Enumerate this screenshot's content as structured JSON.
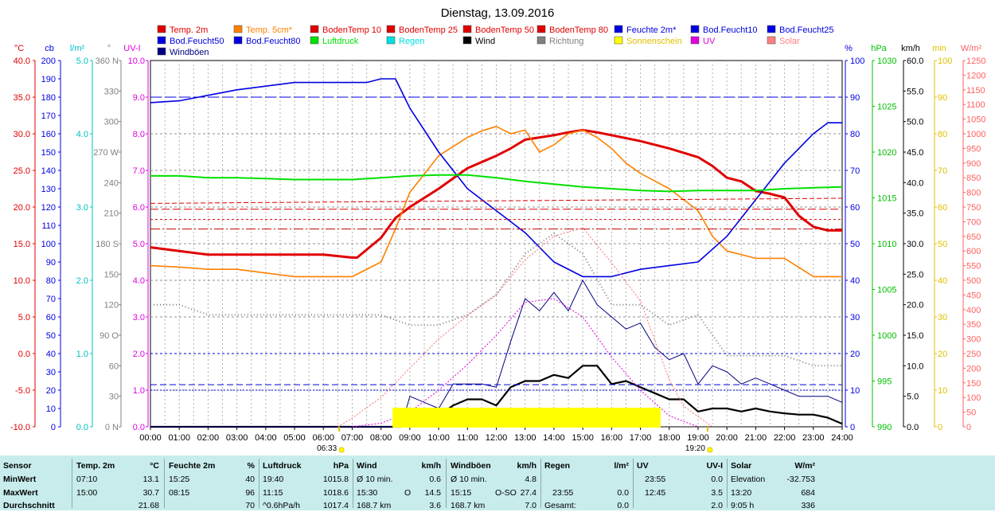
{
  "chart_data": {
    "type": "line",
    "title": "Dienstag, 13.09.2016",
    "x_ticks": [
      "00:00",
      "01:00",
      "02:00",
      "03:00",
      "04:00",
      "05:00",
      "06:00",
      "07:00",
      "08:00",
      "09:00",
      "10:00",
      "11:00",
      "12:00",
      "13:00",
      "14:00",
      "15:00",
      "16:00",
      "17:00",
      "18:00",
      "19:00",
      "20:00",
      "21:00",
      "22:00",
      "23:00",
      "24:00"
    ],
    "sun_events": [
      {
        "label": "06:33",
        "hour": 6.55
      },
      {
        "label": "19:20",
        "hour": 19.33
      }
    ],
    "legend": [
      {
        "name": "Temp. 2m",
        "color": "#e00000"
      },
      {
        "name": "Temp. 5cm*",
        "color": "#ff8000"
      },
      {
        "name": "BodenTemp 10",
        "color": "#e00000"
      },
      {
        "name": "BodenTemp 25",
        "color": "#e00000"
      },
      {
        "name": "BodenTemp 50",
        "color": "#e00000"
      },
      {
        "name": "BodenTemp 80",
        "color": "#e00000"
      },
      {
        "name": "Feuchte 2m*",
        "color": "#0000e0"
      },
      {
        "name": "Bod.Feucht10",
        "color": "#0000e0"
      },
      {
        "name": "Bod.Feucht25",
        "color": "#0000e0"
      },
      {
        "name": "Bod.Feucht50",
        "color": "#0000e0"
      },
      {
        "name": "Bod.Feucht80",
        "color": "#0000e0"
      },
      {
        "name": "Luftdruck",
        "color": "#00e000"
      },
      {
        "name": "Regen",
        "color": "#00e0e0"
      },
      {
        "name": "Wind",
        "color": "#000000"
      },
      {
        "name": "Richtung",
        "color": "#808080"
      },
      {
        "name": "Sonnenschein",
        "color": "#ffff00"
      },
      {
        "name": "UV",
        "color": "#e000e0"
      },
      {
        "name": "Solar",
        "color": "#ff8080"
      },
      {
        "name": "Windböen",
        "color": "#000080"
      }
    ],
    "axes": [
      {
        "unit": "°C",
        "color": "#e00000",
        "ticks": [
          "40.0",
          "35.0",
          "30.0",
          "25.0",
          "20.0",
          "15.0",
          "10.0",
          "5.0",
          "0.0",
          "-5.0",
          "-10.0"
        ]
      },
      {
        "unit": "cb",
        "color": "#0000e0",
        "ticks": [
          "200",
          "190",
          "180",
          "170",
          "160",
          "150",
          "140",
          "130",
          "120",
          "110",
          "100",
          "90",
          "80",
          "70",
          "60",
          "50",
          "40",
          "30",
          "20",
          "10",
          "0"
        ]
      },
      {
        "unit": "l/m²",
        "color": "#00c0c0",
        "ticks": [
          "5.0",
          "4.0",
          "3.0",
          "2.0",
          "1.0",
          "0.0"
        ]
      },
      {
        "unit": "°",
        "color": "#808080",
        "ticks": [
          "360 N",
          "330",
          "300",
          "270 W",
          "240",
          "210",
          "180 S",
          "150",
          "120",
          "90 O",
          "60",
          "30",
          "0 N"
        ]
      },
      {
        "unit": "UV-I",
        "color": "#e000e0",
        "ticks": [
          "10.0",
          "9.0",
          "8.0",
          "7.0",
          "6.0",
          "5.0",
          "4.0",
          "3.0",
          "2.0",
          "1.0",
          "0.0"
        ]
      },
      {
        "unit": "%",
        "color": "#0000e0",
        "ticks": [
          "100",
          "90",
          "80",
          "70",
          "60",
          "50",
          "40",
          "30",
          "20",
          "10",
          "0"
        ]
      },
      {
        "unit": "hPa",
        "color": "#00c000",
        "ticks": [
          "1030",
          "1025",
          "1020",
          "1015",
          "1010",
          "1005",
          "1000",
          "995",
          "990"
        ]
      },
      {
        "unit": "km/h",
        "color": "#000000",
        "ticks": [
          "60.0",
          "55.0",
          "50.0",
          "45.0",
          "40.0",
          "35.0",
          "30.0",
          "25.0",
          "20.0",
          "15.0",
          "10.0",
          "5.0",
          "0.0"
        ]
      },
      {
        "unit": "min",
        "color": "#e0c000",
        "ticks": [
          "100",
          "90",
          "80",
          "70",
          "60",
          "50",
          "40",
          "30",
          "20",
          "10",
          "0"
        ]
      },
      {
        "unit": "W/m²",
        "color": "#ff6060",
        "ticks": [
          "1250",
          "1200",
          "1150",
          "1100",
          "1050",
          "1000",
          "950",
          "900",
          "850",
          "800",
          "750",
          "700",
          "650",
          "600",
          "550",
          "500",
          "450",
          "400",
          "350",
          "300",
          "250",
          "200",
          "150",
          "100",
          "50",
          "0"
        ]
      }
    ],
    "series": [
      {
        "name": "Temp. 2m",
        "unit": "°C",
        "x": [
          0,
          1,
          2,
          3,
          4,
          5,
          6,
          7,
          7.17,
          8,
          8.5,
          9,
          10,
          11,
          12,
          12.5,
          13,
          13.5,
          14,
          14.5,
          15,
          15.5,
          16,
          17,
          18,
          19,
          19.5,
          20,
          20.5,
          21,
          21.5,
          22,
          22.5,
          23,
          23.5,
          24
        ],
        "y": [
          14.5,
          14,
          13.5,
          13.5,
          13.5,
          13.5,
          13.5,
          13.1,
          13.1,
          15.8,
          18.5,
          20,
          22.5,
          25.3,
          27,
          28,
          29.2,
          29.5,
          29.8,
          30.2,
          30.5,
          30.2,
          29.8,
          29,
          28,
          26.8,
          25.6,
          24,
          23.5,
          22.2,
          21.8,
          21.3,
          18.8,
          17.3,
          16.8,
          16.8
        ]
      },
      {
        "name": "Temp. 5cm*",
        "unit": "°C",
        "x": [
          0,
          1,
          2,
          3,
          4,
          5,
          6,
          7,
          8,
          8.5,
          9,
          10,
          11,
          11.5,
          12,
          12.5,
          13,
          13.5,
          14,
          14.5,
          15,
          15.5,
          16,
          16.5,
          17,
          18,
          19,
          19.5,
          20,
          21,
          22,
          23,
          24
        ],
        "y": [
          12,
          11.8,
          11.5,
          11.5,
          11,
          10.5,
          10.5,
          10.5,
          12.5,
          17,
          22,
          27,
          29.5,
          30.4,
          31,
          30,
          30.5,
          27.5,
          28.5,
          30,
          30.5,
          29.5,
          28,
          26,
          24.6,
          22.5,
          19.5,
          16,
          14,
          13,
          13,
          10.5,
          10.5
        ]
      },
      {
        "name": "Feuchte 2m*",
        "unit": "%",
        "x": [
          0,
          1,
          2,
          3,
          4,
          5,
          6,
          7,
          7.5,
          8,
          8.5,
          9,
          10,
          11,
          12,
          13,
          14,
          15,
          16,
          17,
          18,
          19,
          20,
          21,
          22,
          23,
          23.5,
          24
        ],
        "y": [
          88.5,
          89,
          90.5,
          92,
          93,
          94,
          94,
          94,
          94,
          95,
          95,
          87,
          75,
          65,
          59,
          53,
          45,
          41,
          41,
          43,
          44,
          45,
          52,
          62,
          72,
          80,
          83,
          83
        ]
      },
      {
        "name": "Luftdruck",
        "unit": "hPa",
        "x": [
          0,
          1,
          2,
          3,
          4,
          5,
          6,
          7,
          8,
          9,
          10,
          11,
          12,
          13,
          14,
          15,
          16,
          17,
          18,
          19,
          20,
          21,
          22,
          23,
          24
        ],
        "y": [
          1017.4,
          1017.4,
          1017.2,
          1017.2,
          1017.1,
          1017.0,
          1017.0,
          1017.0,
          1017.2,
          1017.4,
          1017.5,
          1017.5,
          1017.2,
          1016.8,
          1016.5,
          1016.2,
          1016.0,
          1015.8,
          1015.7,
          1015.8,
          1015.8,
          1015.8,
          1016.0,
          1016.1,
          1016.2
        ]
      },
      {
        "name": "Wind",
        "unit": "km/h",
        "x": [
          0,
          8.7,
          9,
          9.5,
          10,
          10.5,
          11,
          11.5,
          12,
          12.5,
          13,
          13.5,
          14,
          14.5,
          15,
          15.5,
          16,
          16.5,
          17,
          17.5,
          18,
          18.5,
          19,
          19.5,
          20,
          20.5,
          21,
          21.5,
          22,
          22.5,
          23,
          23.5,
          24
        ],
        "y": [
          0,
          0,
          2.5,
          2,
          1.8,
          3.5,
          4.5,
          4.5,
          3.5,
          6.5,
          7.5,
          7.5,
          8.5,
          8,
          10,
          10,
          7,
          7.5,
          6.5,
          5.5,
          4.5,
          4.5,
          2.5,
          3,
          3,
          2.5,
          3,
          2.5,
          2.2,
          2,
          2,
          1.5,
          0.5
        ]
      },
      {
        "name": "Windböen",
        "unit": "km/h",
        "x": [
          0,
          8.7,
          9,
          9.5,
          10,
          10.5,
          11,
          11.5,
          12,
          12.5,
          13,
          13.5,
          14,
          14.5,
          15,
          15.5,
          16,
          16.5,
          17,
          17.5,
          18,
          18.5,
          19,
          19.5,
          20,
          20.5,
          21,
          21.5,
          22,
          22.5,
          23,
          23.5,
          24
        ],
        "y": [
          0,
          0,
          5,
          4,
          3,
          7,
          7,
          7,
          6.5,
          14,
          21,
          19,
          22,
          19,
          24,
          20,
          18,
          16,
          17,
          13,
          11,
          12,
          7,
          10,
          9,
          7,
          8,
          7,
          6,
          5,
          5,
          5,
          4
        ]
      },
      {
        "name": "Solar",
        "unit": "W/m²",
        "x": [
          6.5,
          7,
          8,
          9,
          10,
          11,
          12,
          13,
          14,
          15,
          16,
          17,
          18,
          18.5,
          19.5
        ],
        "y": [
          0,
          30,
          100,
          200,
          300,
          380,
          450,
          570,
          650,
          680,
          560,
          430,
          160,
          70,
          0
        ]
      },
      {
        "name": "UV",
        "unit": "UV-I",
        "x": [
          7,
          8,
          9,
          10,
          11,
          12,
          13,
          14,
          15,
          16,
          17,
          18,
          19
        ],
        "y": [
          0,
          0.1,
          0.4,
          1.0,
          1.7,
          2.5,
          3.4,
          3.5,
          3.0,
          1.9,
          1.0,
          0.3,
          0
        ]
      },
      {
        "name": "Richtung",
        "unit": "°",
        "x": [
          0,
          1,
          2,
          3,
          4,
          5,
          6,
          7,
          8,
          9,
          10,
          11,
          12,
          13,
          14,
          15,
          16,
          17,
          18,
          19,
          20,
          21,
          22,
          23,
          24
        ],
        "y": [
          120,
          120,
          110,
          110,
          110,
          110,
          110,
          110,
          110,
          100,
          100,
          110,
          130,
          170,
          190,
          170,
          120,
          120,
          100,
          110,
          70,
          70,
          70,
          60,
          60
        ]
      },
      {
        "name": "Sonnenschein",
        "unit": "min",
        "x": [
          8.4,
          9,
          10,
          11,
          12,
          13,
          14,
          15,
          16,
          17,
          17.7
        ],
        "y": [
          5,
          5,
          5,
          5,
          5,
          5,
          5,
          5,
          5,
          5,
          5
        ]
      },
      {
        "name": "BodenTemp 10",
        "unit": "°C",
        "x": [
          0,
          24
        ],
        "y": [
          19.7,
          19.7
        ]
      },
      {
        "name": "BodenTemp 25",
        "unit": "°C",
        "x": [
          0,
          24
        ],
        "y": [
          20.5,
          21.2
        ]
      },
      {
        "name": "BodenTemp 50",
        "unit": "°C",
        "x": [
          0,
          24
        ],
        "y": [
          18.3,
          18.3
        ]
      },
      {
        "name": "BodenTemp 80",
        "unit": "°C",
        "x": [
          0,
          24
        ],
        "y": [
          17.0,
          17.0
        ]
      },
      {
        "name": "Bod.Feucht10",
        "unit": "cb",
        "x": [
          0,
          24
        ],
        "y": [
          180,
          180
        ]
      },
      {
        "name": "Bod.Feucht25",
        "unit": "cb",
        "x": [
          0,
          24
        ],
        "y": [
          40,
          40
        ]
      },
      {
        "name": "Bod.Feucht50",
        "unit": "cb",
        "x": [
          0,
          24
        ],
        "y": [
          23,
          23
        ]
      },
      {
        "name": "Bod.Feucht80",
        "unit": "cb",
        "x": [
          0,
          24
        ],
        "y": [
          20,
          20
        ]
      }
    ]
  },
  "stats": {
    "sensor": {
      "title": "Sensor",
      "min": "MinWert",
      "max": "MaxWert",
      "avg": "Durchschnitt"
    },
    "temp": {
      "title": "Temp. 2m",
      "unit": "°C",
      "min_time": "07:10",
      "min_val": "13.1",
      "max_time": "15:00",
      "max_val": "30.7",
      "avg_val": "21.68"
    },
    "hum": {
      "title": "Feuchte 2m",
      "unit": "%",
      "min_time": "15:25",
      "min_val": "40",
      "max_time": "08:15",
      "max_val": "96",
      "avg_val": "70"
    },
    "press": {
      "title": "Luftdruck",
      "unit": "hPa",
      "min_time": "19:40",
      "min_val": "1015.8",
      "max_time": "11:15",
      "max_val": "1018.6",
      "avg_label": "^0.6hPa/h",
      "avg_val": "1017.4"
    },
    "wind": {
      "title": "Wind",
      "unit": "km/h",
      "min_label": "Ø 10 min.",
      "min_val": "0.6",
      "max_time": "15:30",
      "max_dir": "O",
      "max_val": "14.5",
      "avg_label": "168.7 km",
      "avg_val": "3.6"
    },
    "gust": {
      "title": "Windböen",
      "unit": "km/h",
      "min_label": "Ø 10 min.",
      "min_val": "4.8",
      "max_time": "15:15",
      "max_dir": "O-SO",
      "max_val": "27.4",
      "avg_label": "168.7 km",
      "avg_val": "7.0"
    },
    "rain": {
      "title": "Regen",
      "unit": "l/m²",
      "max_time": "23:55",
      "max_val": "0.0",
      "avg_label": "Gesamt:",
      "avg_val": "0.0"
    },
    "uv": {
      "title": "UV",
      "unit": "UV-I",
      "min_time": "23:55",
      "min_val": "0.0",
      "max_time": "12:45",
      "max_val": "3.5",
      "avg_val": "2.0"
    },
    "solar": {
      "title": "Solar",
      "unit": "W/m²",
      "min_label": "Elevation",
      "min_val": "-32.753",
      "max_time": "13:20",
      "max_val": "684",
      "avg_label": "9:05 h",
      "avg_val": "336"
    }
  }
}
